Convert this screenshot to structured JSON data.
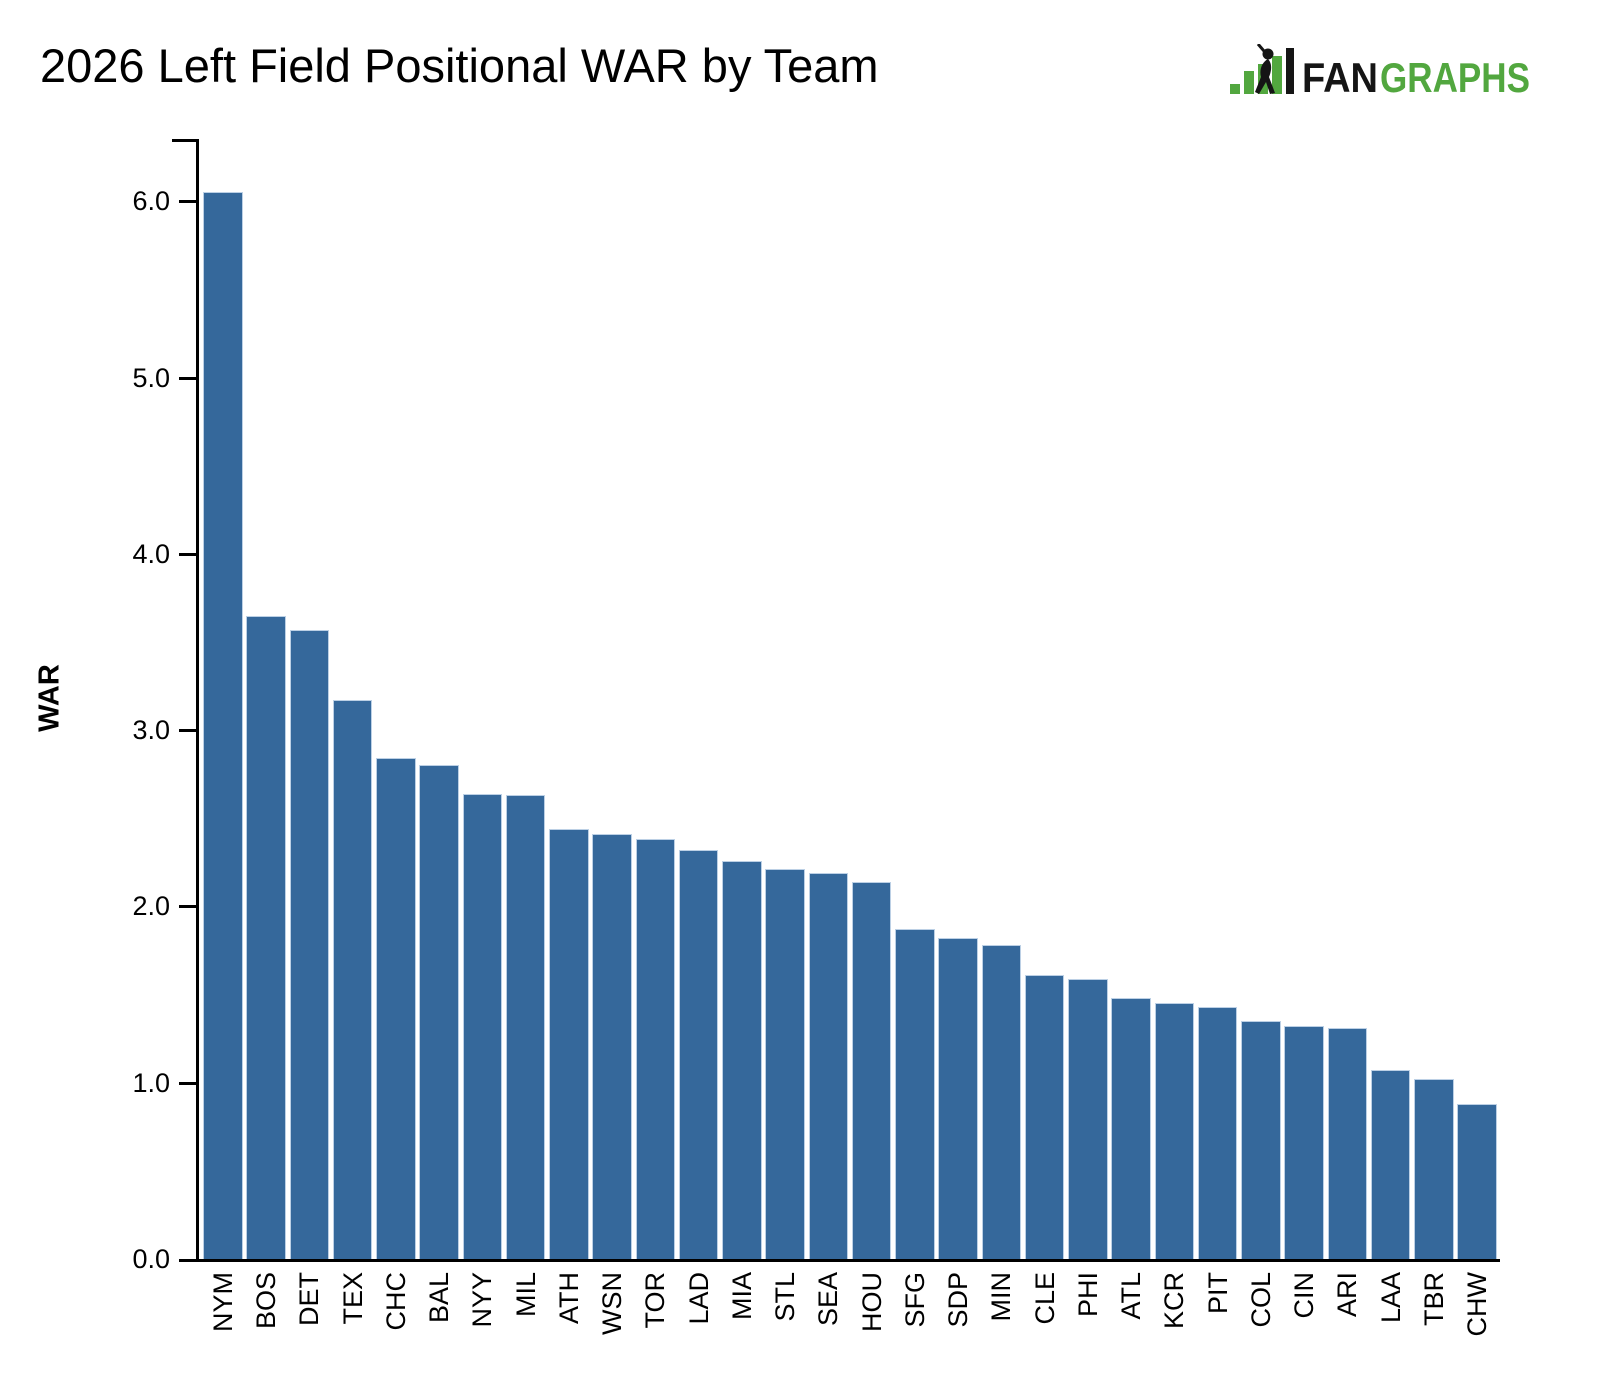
{
  "header": {
    "title": "2026 Left Field Positional WAR by Team"
  },
  "logo": {
    "fan": "FAN",
    "graphs": "GRAPHS",
    "green": "#52a73f",
    "black": "#151515"
  },
  "chart_data": {
    "type": "bar",
    "title": "2026 Left Field Positional WAR by Team",
    "xlabel": "",
    "ylabel": "WAR",
    "categories": [
      "NYM",
      "BOS",
      "DET",
      "TEX",
      "CHC",
      "BAL",
      "NYY",
      "MIL",
      "ATH",
      "WSN",
      "TOR",
      "LAD",
      "MIA",
      "STL",
      "SEA",
      "HOU",
      "SFG",
      "SDP",
      "MIN",
      "CLE",
      "PHI",
      "ATL",
      "KCR",
      "PIT",
      "COL",
      "CIN",
      "ARI",
      "LAA",
      "TBR",
      "CHW"
    ],
    "values": [
      6.05,
      3.65,
      3.57,
      3.17,
      2.84,
      2.8,
      2.64,
      2.63,
      2.44,
      2.41,
      2.38,
      2.32,
      2.26,
      2.21,
      2.19,
      2.14,
      1.87,
      1.82,
      1.78,
      1.61,
      1.59,
      1.48,
      1.45,
      1.43,
      1.35,
      1.32,
      1.31,
      1.07,
      1.02,
      0.88
    ],
    "ylim": [
      0,
      6.35
    ],
    "yticks": [
      0,
      1,
      2,
      3,
      4,
      5,
      6
    ],
    "ytick_labels": [
      "0.0",
      "1.0",
      "2.0",
      "3.0",
      "4.0",
      "5.0",
      "6.0"
    ],
    "bar_color": "#35689b",
    "bar_edge_color": "#bcd0e5",
    "grid": false,
    "legend": "none"
  }
}
